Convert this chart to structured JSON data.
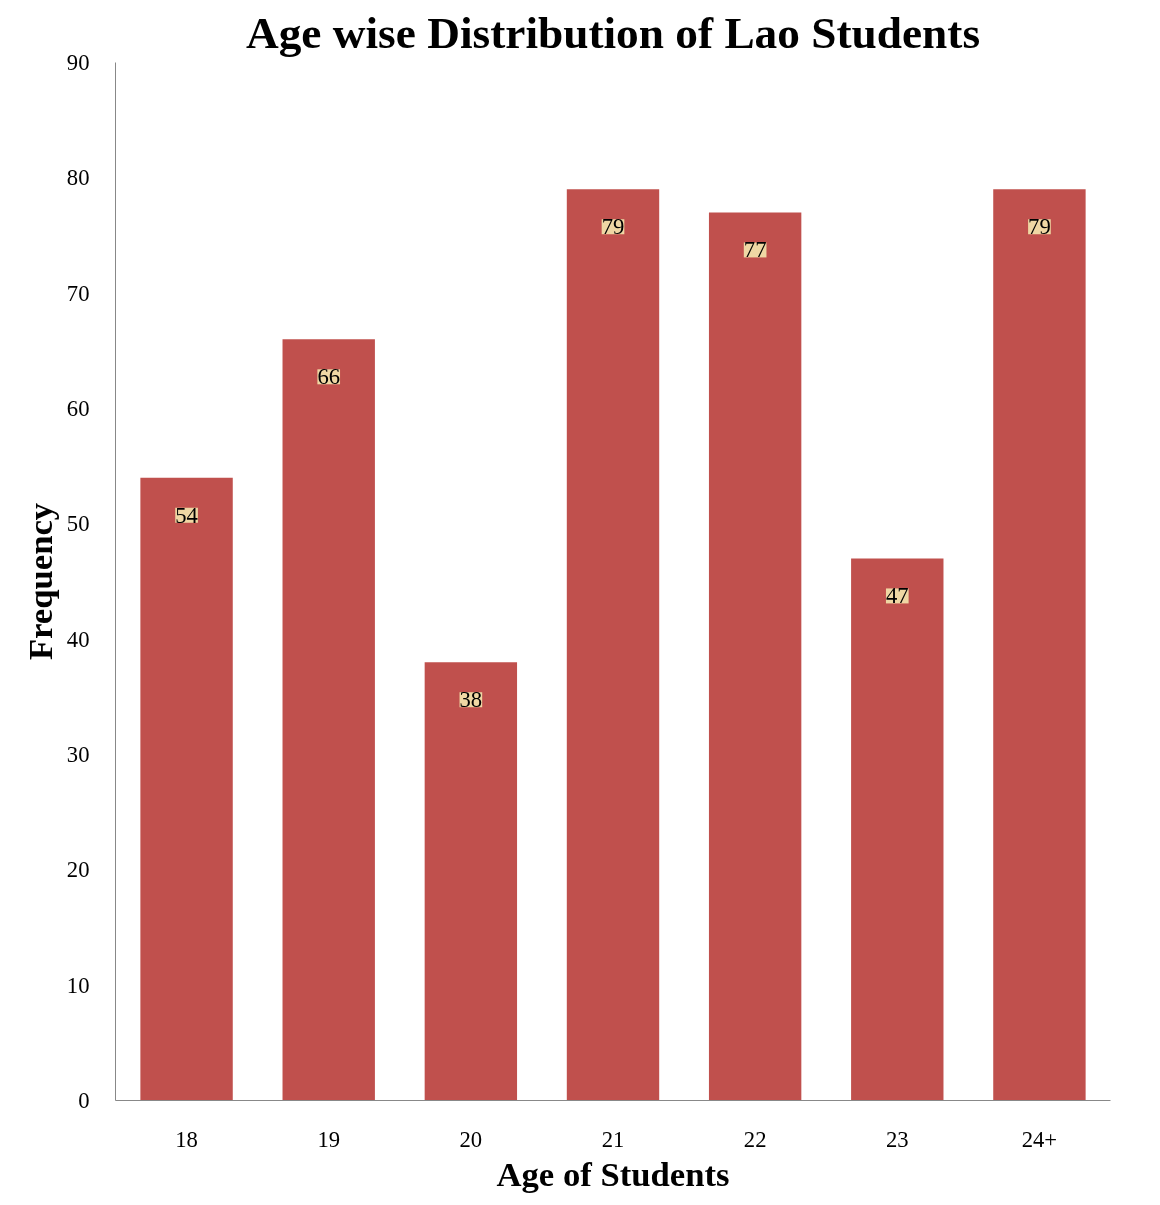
{
  "chart_data": {
    "type": "bar",
    "title": "Age wise Distribution of Lao Students",
    "xlabel": "Age of Students",
    "ylabel": "Frequency",
    "categories": [
      "18",
      "19",
      "20",
      "21",
      "22",
      "23",
      "24+"
    ],
    "values": [
      54,
      66,
      38,
      79,
      77,
      47,
      79
    ],
    "color": "#c0504d",
    "ylim": [
      0,
      90
    ],
    "yticks": [
      0,
      10,
      20,
      30,
      40,
      50,
      60,
      70,
      80,
      90
    ],
    "grid": false,
    "data_labels": true
  }
}
